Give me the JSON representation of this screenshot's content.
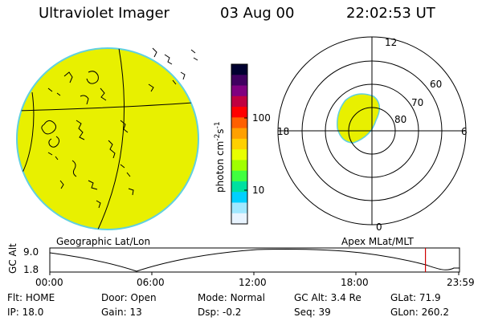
{
  "header": {
    "instrument": "Ultraviolet Imager",
    "date": "03 Aug 00",
    "time": "22:02:53 UT"
  },
  "colorbar": {
    "unit_label": "photon cm",
    "unit_exp1": "-2",
    "unit_s": "s",
    "unit_exp2": "-1",
    "tick_high": "100",
    "tick_low": "10",
    "colors": [
      "#000030",
      "#400060",
      "#800080",
      "#c00040",
      "#ff0000",
      "#ff6000",
      "#ffa000",
      "#ffd000",
      "#e8ff00",
      "#a0ff00",
      "#40ff40",
      "#00e0a0",
      "#00d0ff",
      "#a0e8ff",
      "#e8f4ff"
    ]
  },
  "panels": {
    "geo_label": "Geographic Lat/Lon",
    "apex_label": "Apex MLat/MLT",
    "polar_labels": {
      "top": "12",
      "left": "18",
      "right": "6",
      "bottom": "0",
      "ring60": "60",
      "ring70": "70",
      "ring80": "80"
    },
    "fill_color": "#e8f000",
    "edge_color": "#60d0e0"
  },
  "orbit": {
    "axis_label": "GC Alt",
    "y_top": "9.0",
    "y_bottom": "1.8",
    "x_ticks": [
      "00:00",
      "06:00",
      "12:00",
      "18:00",
      "23:59"
    ],
    "marker_color": "#d00000",
    "marker_time_hours": 22.05
  },
  "info": {
    "flt_label": "Flt:",
    "flt_value": "HOME",
    "door_label": "Door:",
    "door_value": "Open",
    "mode_label": "Mode:",
    "mode_value": "Normal",
    "gcalt_label": "GC Alt:",
    "gcalt_value": "3.4 Re",
    "glat_label": "GLat:",
    "glat_value": "71.9",
    "ip_label": "IP:",
    "ip_value": "18.0",
    "gain_label": "Gain:",
    "gain_value": "13",
    "dsp_label": "Dsp:",
    "dsp_value": "-0.2",
    "seq_label": "Seq:",
    "seq_value": "39",
    "glon_label": "GLon:",
    "glon_value": "260.2"
  }
}
